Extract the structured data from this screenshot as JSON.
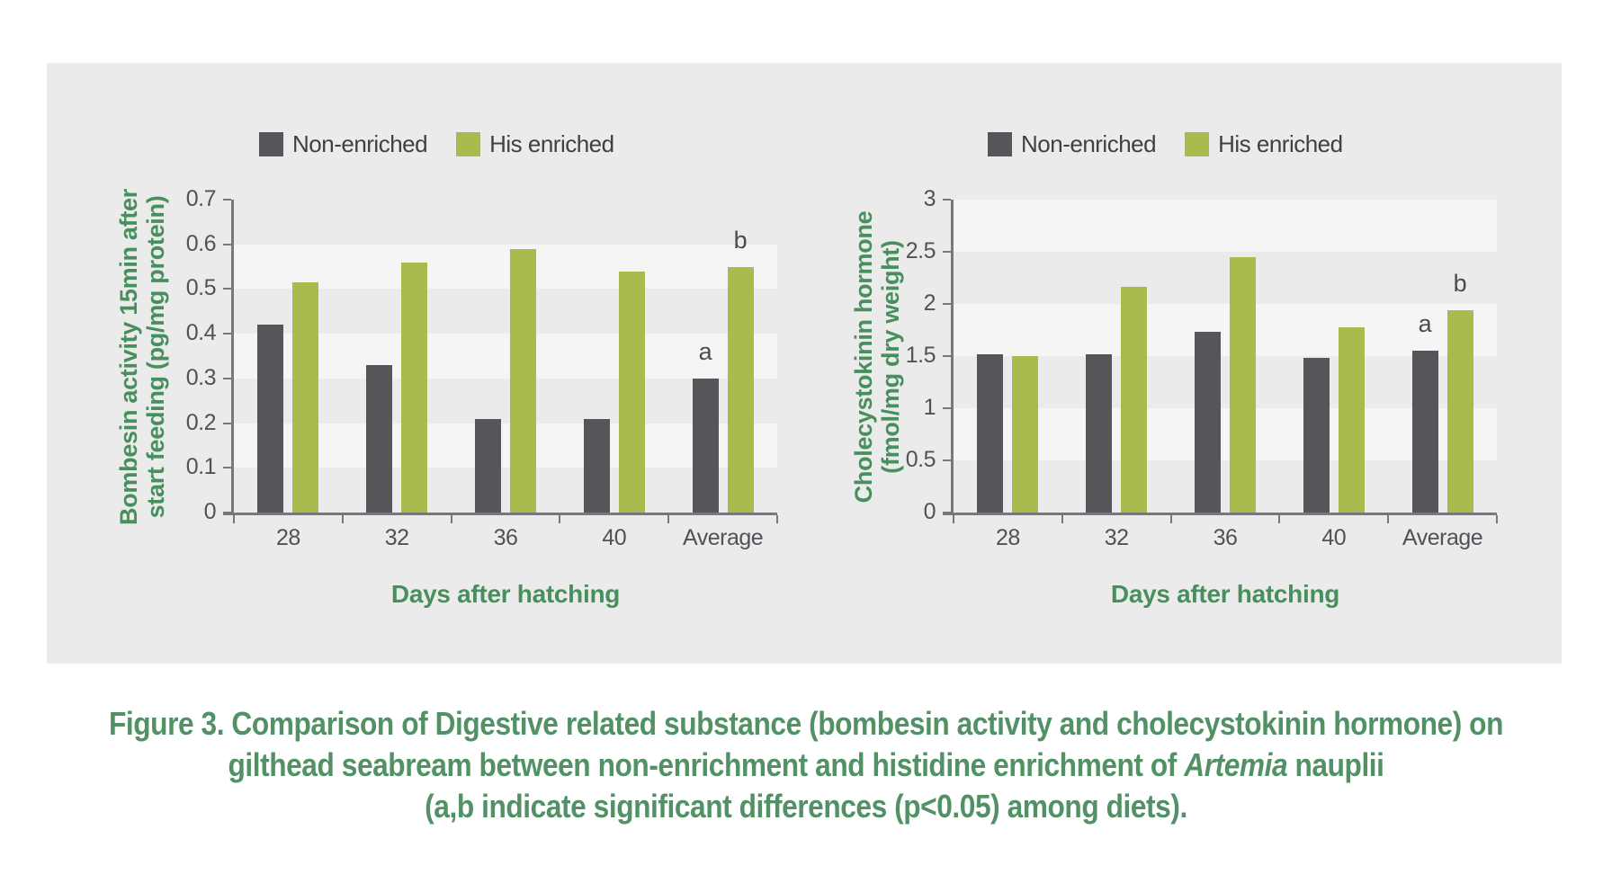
{
  "colors": {
    "bar_dark": "#54565a",
    "bar_green": "#a8bc4e",
    "panel": "#ebebeb",
    "band_light": "#f5f5f5",
    "axis": "#77787b",
    "tick_text": "#515257",
    "legend_text": "#3f4043",
    "green_text": "#47905e",
    "caption_green": "#519165",
    "letter_text": "#4b4c50"
  },
  "chart_data": [
    {
      "type": "bar",
      "ylabel_line1": "Bombesin activity 15min after",
      "ylabel_line2": "start feeding (pg/mg protein)",
      "xlabel": "Days after hatching",
      "categories": [
        "28",
        "32",
        "36",
        "40",
        "Average"
      ],
      "series": [
        {
          "name": "Non-enriched",
          "values": [
            0.42,
            0.33,
            0.21,
            0.21,
            0.3
          ]
        },
        {
          "name": "His enriched",
          "values": [
            0.515,
            0.56,
            0.59,
            0.54,
            0.55
          ]
        }
      ],
      "ylim": [
        0,
        0.7
      ],
      "ytick_values": [
        0,
        0.1,
        0.2,
        0.3,
        0.4,
        0.5,
        0.6,
        0.7
      ],
      "ytick_labels": [
        "0",
        "0.1",
        "0.2",
        "0.3",
        "0.4",
        "0.5",
        "0.6",
        "0.7"
      ],
      "grid": "alternating horizontal bands",
      "legend_position": "top",
      "annotations": [
        {
          "category_index": 4,
          "series_index": 0,
          "text": "a"
        },
        {
          "category_index": 4,
          "series_index": 1,
          "text": "b"
        }
      ]
    },
    {
      "type": "bar",
      "ylabel_line1": "Cholecystokinin hormone",
      "ylabel_line2": "(fmol/mg dry weight)",
      "xlabel": "Days after hatching",
      "categories": [
        "28",
        "32",
        "36",
        "40",
        "Average"
      ],
      "series": [
        {
          "name": "Non-enriched",
          "values": [
            1.52,
            1.52,
            1.73,
            1.48,
            1.55
          ]
        },
        {
          "name": "His enriched",
          "values": [
            1.5,
            2.16,
            2.45,
            1.78,
            1.94
          ]
        }
      ],
      "ylim": [
        0,
        3
      ],
      "ytick_values": [
        0,
        0.5,
        1,
        1.5,
        2,
        2.5,
        3
      ],
      "ytick_labels": [
        "0",
        "0.5",
        "1",
        "1.5",
        "2",
        "2.5",
        "3"
      ],
      "grid": "alternating horizontal bands",
      "legend_position": "top",
      "annotations": [
        {
          "category_index": 4,
          "series_index": 0,
          "text": "a"
        },
        {
          "category_index": 4,
          "series_index": 1,
          "text": "b"
        }
      ]
    }
  ],
  "caption": {
    "line1": "Figure 3. Comparison of Digestive related substance (bombesin activity and cholecystokinin hormone) on",
    "line2_pre": "gilthead seabream between non-enrichment and histidine enrichment of ",
    "line2_italic": "Artemia",
    "line2_post": " nauplii",
    "line3": "(a,b indicate significant differences (p<0.05) among diets)."
  }
}
